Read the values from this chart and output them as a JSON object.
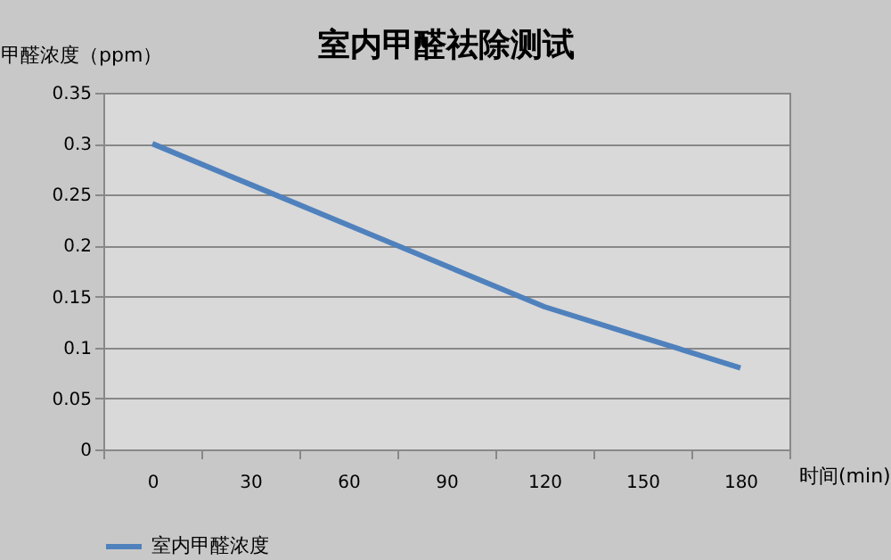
{
  "chart_data": {
    "type": "line",
    "title": "室内甲醛祛除测试",
    "xlabel": "时间(min)",
    "ylabel": "甲醛浓度（ppm）",
    "categories": [
      "0",
      "30",
      "60",
      "90",
      "120",
      "150",
      "180"
    ],
    "series": [
      {
        "name": "室内甲醛浓度",
        "color": "#4f81bd",
        "values": [
          0.3,
          0.26,
          0.22,
          0.18,
          0.14,
          0.11,
          0.08
        ]
      }
    ],
    "ylim": [
      0,
      0.35
    ],
    "yticks": [
      0,
      0.05,
      0.1,
      0.15,
      0.2,
      0.25,
      0.3,
      0.35
    ],
    "grid": "y",
    "legend": "bottom",
    "marker": "none",
    "line_style": "solid"
  }
}
